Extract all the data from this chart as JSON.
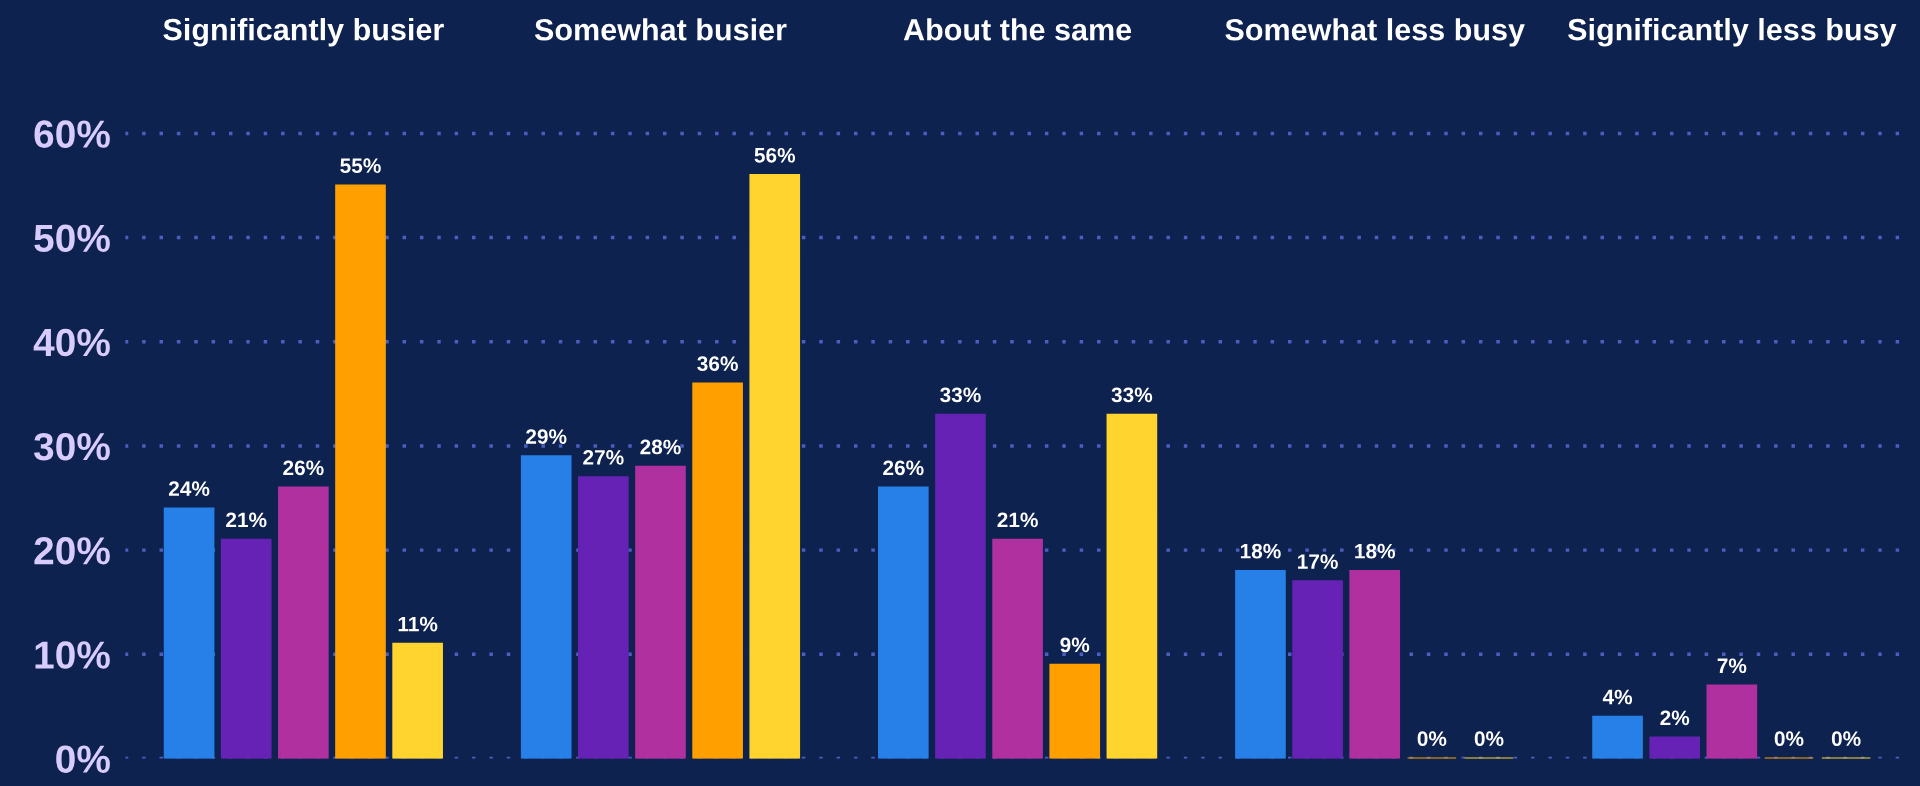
{
  "chart_data": {
    "type": "bar",
    "categories": [
      "Significantly busier",
      "Somewhat busier",
      "About the same",
      "Somewhat less busy",
      "Significantly less busy"
    ],
    "series": [
      {
        "color": "#2680e8",
        "values": [
          24,
          29,
          26,
          18,
          4
        ],
        "value_labels": [
          "24%",
          "29%",
          "26%",
          "18%",
          "4%"
        ]
      },
      {
        "color": "#6622b4",
        "values": [
          21,
          27,
          33,
          17,
          2
        ],
        "value_labels": [
          "21%",
          "27%",
          "33%",
          "17%",
          "2%"
        ]
      },
      {
        "color": "#b030a0",
        "values": [
          26,
          28,
          21,
          18,
          7
        ],
        "value_labels": [
          "26%",
          "28%",
          "21%",
          "18%",
          "7%"
        ]
      },
      {
        "color": "#ffa000",
        "values": [
          55,
          36,
          9,
          0,
          0
        ],
        "value_labels": [
          "55%",
          "36%",
          "9%",
          "0%",
          "0%"
        ]
      },
      {
        "color": "#ffd42e",
        "values": [
          11,
          56,
          33,
          0,
          0
        ],
        "value_labels": [
          "11%",
          "56%",
          "33%",
          "0%",
          "0%"
        ]
      }
    ],
    "ylim": [
      0,
      63
    ],
    "yticks": [
      {
        "value": 0,
        "label": "0%"
      },
      {
        "value": 10,
        "label": "10%"
      },
      {
        "value": 20,
        "label": "20%"
      },
      {
        "value": 30,
        "label": "30%"
      },
      {
        "value": 40,
        "label": "40%"
      },
      {
        "value": 50,
        "label": "50%"
      },
      {
        "value": 60,
        "label": "60%"
      }
    ],
    "grid": "y"
  }
}
